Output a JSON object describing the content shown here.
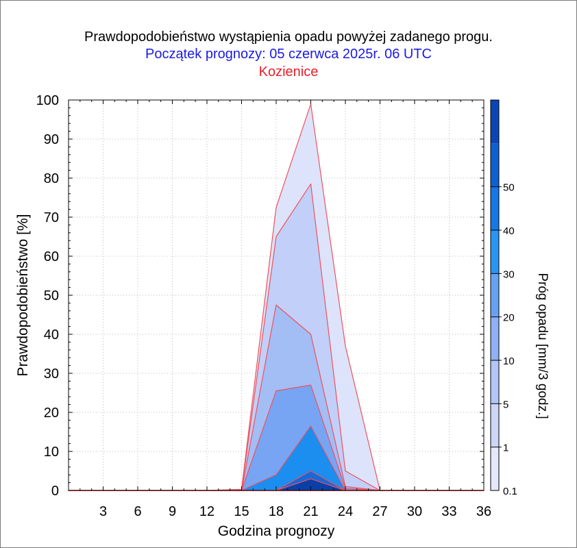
{
  "chart_data": {
    "type": "area",
    "title": "Prawdopodobieństwo wystąpienia opadu powyżej zadanego progu.",
    "subtitle": "Początek prognozy: 05 czerwca 2025r. 06 UTC",
    "location": "Kozienice",
    "xlabel": "Godzina prognozy",
    "ylabel": "Prawdopodobieństwo [%]",
    "xlim": [
      0,
      36
    ],
    "ylim": [
      0,
      100
    ],
    "x_ticks": [
      3,
      6,
      9,
      12,
      15,
      18,
      21,
      24,
      27,
      30,
      33,
      36
    ],
    "y_ticks": [
      0,
      10,
      20,
      30,
      40,
      50,
      60,
      70,
      80,
      90,
      100
    ],
    "grid": true,
    "x": [
      0,
      3,
      6,
      9,
      12,
      15,
      18,
      21,
      24,
      27,
      30,
      33,
      36
    ],
    "series": [
      {
        "threshold": 0.1,
        "values": [
          0,
          0,
          0,
          0,
          0,
          0.3,
          72.5,
          99,
          37,
          0,
          0,
          0,
          0
        ]
      },
      {
        "threshold": 1,
        "values": [
          0,
          0,
          0,
          0,
          0,
          0.2,
          65,
          78.5,
          5,
          0,
          0,
          0,
          0
        ]
      },
      {
        "threshold": 5,
        "values": [
          0,
          0,
          0,
          0,
          0,
          0,
          47.5,
          40,
          1,
          0,
          0,
          0,
          0
        ]
      },
      {
        "threshold": 10,
        "values": [
          0,
          0,
          0,
          0,
          0,
          0,
          25.5,
          27,
          0.5,
          0,
          0,
          0,
          0
        ]
      },
      {
        "threshold": 20,
        "values": [
          0,
          0,
          0,
          0,
          0,
          0,
          4,
          16.5,
          0,
          0,
          0,
          0,
          0
        ]
      },
      {
        "threshold": 30,
        "values": [
          0,
          0,
          0,
          0,
          0,
          0,
          0,
          5,
          0,
          0,
          0,
          0,
          0
        ]
      },
      {
        "threshold": 40,
        "values": [
          0,
          0,
          0,
          0,
          0,
          0,
          0,
          3,
          0,
          0,
          0,
          0,
          0
        ]
      }
    ],
    "colorbar": {
      "label": "Próg opadu [mm/3 godz.]",
      "tick_labels": [
        "0.1",
        "1",
        "5",
        "10",
        "20",
        "30",
        "40",
        "50"
      ],
      "colors": [
        "#e4e8fa",
        "#ccd6f8",
        "#b3c6f7",
        "#8fb0f6",
        "#66a2f2",
        "#2a96f3",
        "#1677e6",
        "#0e61d2",
        "#0a46b5"
      ]
    },
    "series_colors": [
      "#dde3fa",
      "#c2cff8",
      "#a3bdf5",
      "#78a4f4",
      "#1b8ef0",
      "#1569d8",
      "#0b3fa8"
    ],
    "outline_color": "#f0505a",
    "title_colors": {
      "title": "#000000",
      "subtitle": "#1a1ae6",
      "location": "#e8202a"
    }
  }
}
